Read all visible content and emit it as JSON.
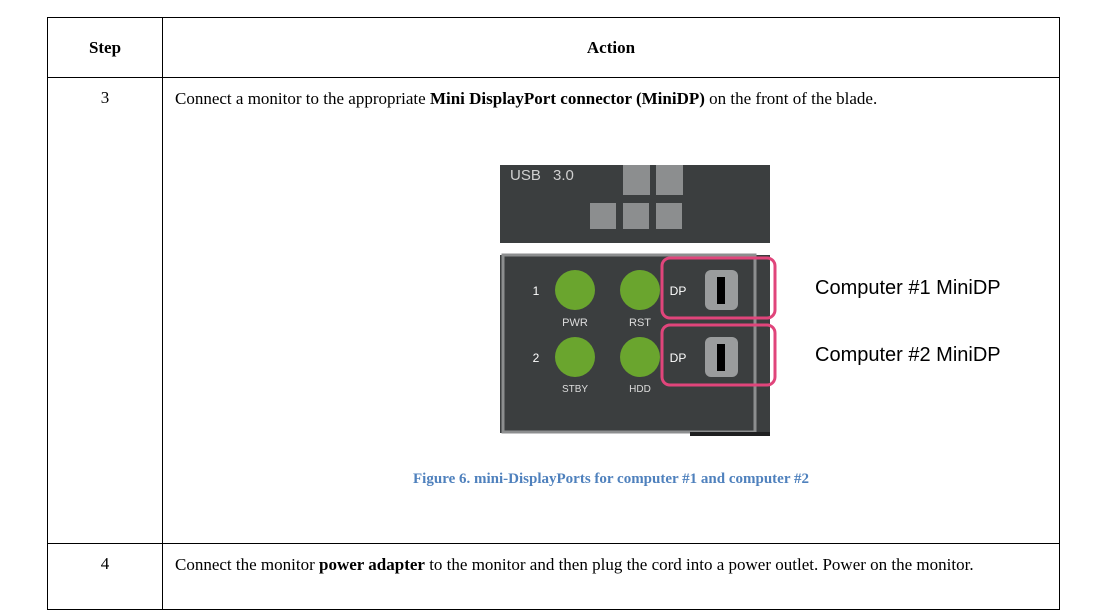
{
  "table": {
    "header": [
      "Step",
      "Action"
    ],
    "rows": [
      {
        "step": "3",
        "runs": [
          {
            "text": "Connect a monitor to the appropriate "
          },
          {
            "text": "Mini DisplayPort connector (MiniDP)",
            "bold": true
          },
          {
            "text": " on the front of the blade."
          }
        ]
      },
      {
        "step": "4",
        "runs": [
          {
            "text": "Connect the monitor "
          },
          {
            "text": "power adapter",
            "bold": true
          },
          {
            "text": " to the monitor and then plug the cord into a power outlet. Power on the monitor."
          }
        ]
      }
    ]
  },
  "figure": {
    "panel_labels": [
      "USB",
      "3.0",
      "1",
      "2",
      "PWR",
      "RST",
      "STBY",
      "HDD",
      "DP",
      "DP"
    ],
    "callouts": [
      "Computer #1 MiniDP",
      "Computer #2 MiniDP"
    ],
    "caption": "Figure 6. mini-DisplayPorts for computer #1 and computer #2"
  }
}
